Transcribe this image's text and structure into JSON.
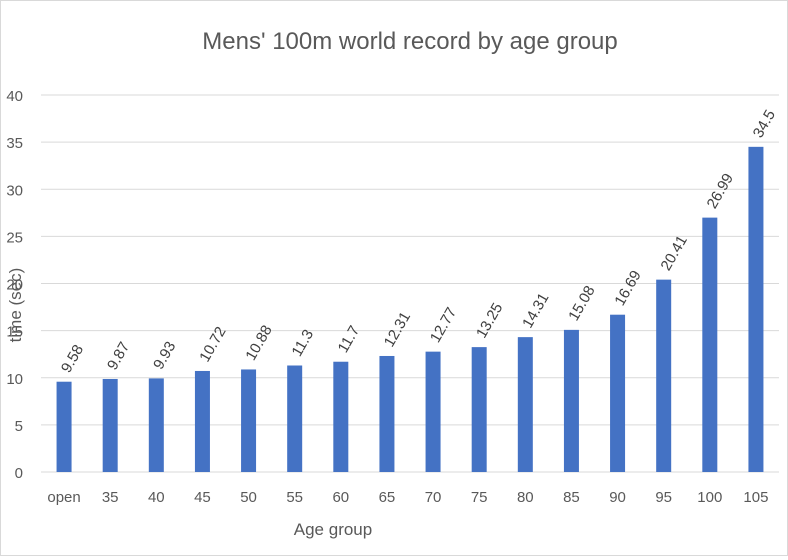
{
  "chart_data": {
    "type": "bar",
    "title": "Mens' 100m world record by age group",
    "xlabel": "Age group",
    "ylabel": "time (sec)",
    "categories": [
      "open",
      "35",
      "40",
      "45",
      "50",
      "55",
      "60",
      "65",
      "70",
      "75",
      "80",
      "85",
      "90",
      "95",
      "100",
      "105"
    ],
    "values": [
      9.58,
      9.87,
      9.93,
      10.72,
      10.88,
      11.3,
      11.7,
      12.31,
      12.77,
      13.25,
      14.31,
      15.08,
      16.69,
      20.41,
      26.99,
      34.5
    ],
    "data_labels": [
      "9.58",
      "9.87",
      "9.93",
      "10.72",
      "10.88",
      "11.3",
      "11.7",
      "12.31",
      "12.77",
      "13.25",
      "14.31",
      "15.08",
      "16.69",
      "20.41",
      "26.99",
      "34.5"
    ],
    "ylim": [
      0,
      40
    ],
    "yticks": [
      "0",
      "5",
      "10",
      "15",
      "20",
      "25",
      "30",
      "35",
      "40"
    ],
    "grid": true,
    "legend": "none",
    "bar_color": "#4472C4",
    "grid_color": "#D9D9D9",
    "text_color": "#595959"
  }
}
